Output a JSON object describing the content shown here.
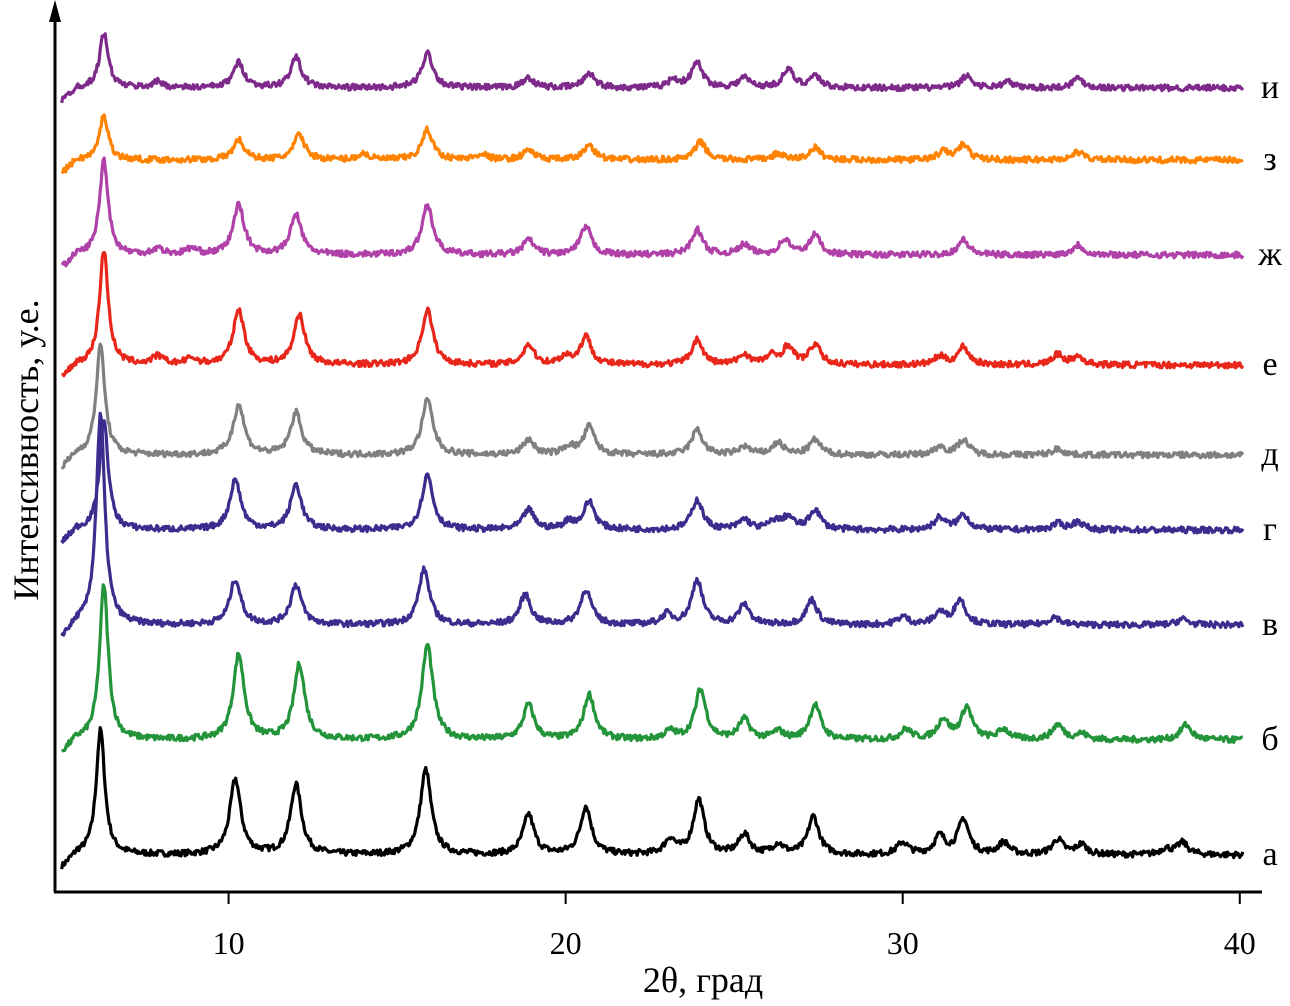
{
  "chart_data": {
    "type": "line",
    "title": "",
    "xlabel": "2θ, град",
    "ylabel": "Интенсивность, у.е.",
    "xlim": [
      4.85,
      40.6
    ],
    "ylim": [
      0,
      890
    ],
    "xticks": [
      10,
      20,
      30,
      40
    ],
    "xtick_labels": [
      "10",
      "20",
      "30",
      "40"
    ],
    "grid": false,
    "legend": "labels at right end of each curve",
    "peak_width": 0.14,
    "series": [
      {
        "name": "а",
        "color": "#000000",
        "offset": 37,
        "peaks": [
          [
            6.2,
            125
          ],
          [
            10.2,
            75
          ],
          [
            12.0,
            70
          ],
          [
            15.85,
            85
          ],
          [
            18.9,
            40
          ],
          [
            20.6,
            48
          ],
          [
            23.1,
            15
          ],
          [
            23.95,
            55
          ],
          [
            25.3,
            20
          ],
          [
            26.3,
            10
          ],
          [
            27.35,
            38
          ],
          [
            30.0,
            12
          ],
          [
            31.1,
            18
          ],
          [
            31.8,
            35
          ],
          [
            33.0,
            12
          ],
          [
            34.6,
            15
          ],
          [
            35.3,
            10
          ],
          [
            37.8,
            6
          ],
          [
            38.3,
            12
          ]
        ]
      },
      {
        "name": "б",
        "color": "#23943a",
        "offset": 152,
        "peaks": [
          [
            6.3,
            155
          ],
          [
            10.3,
            85
          ],
          [
            12.1,
            75
          ],
          [
            15.9,
            95
          ],
          [
            18.9,
            35
          ],
          [
            20.7,
            45
          ],
          [
            23.1,
            8
          ],
          [
            24.0,
            50
          ],
          [
            25.3,
            20
          ],
          [
            26.3,
            8
          ],
          [
            27.4,
            35
          ],
          [
            30.1,
            10
          ],
          [
            31.2,
            20
          ],
          [
            31.9,
            32
          ],
          [
            33.0,
            10
          ],
          [
            34.6,
            15
          ],
          [
            35.3,
            6
          ],
          [
            38.4,
            15
          ]
        ]
      },
      {
        "name": "в",
        "color": "#3b2d8e",
        "offset": 267,
        "peaks": [
          [
            6.2,
            210
          ],
          [
            10.2,
            45
          ],
          [
            12.0,
            40
          ],
          [
            15.8,
            55
          ],
          [
            18.8,
            30
          ],
          [
            20.6,
            35
          ],
          [
            23.0,
            10
          ],
          [
            23.9,
            45
          ],
          [
            25.3,
            20
          ],
          [
            27.3,
            25
          ],
          [
            30.0,
            8
          ],
          [
            31.1,
            12
          ],
          [
            31.7,
            25
          ],
          [
            34.5,
            8
          ],
          [
            38.3,
            6
          ]
        ]
      },
      {
        "name": "г",
        "color": "#3b2d8e",
        "offset": 362,
        "peaks": [
          [
            6.3,
            110
          ],
          [
            10.2,
            50
          ],
          [
            12.0,
            45
          ],
          [
            15.9,
            55
          ],
          [
            18.9,
            20
          ],
          [
            20.1,
            8
          ],
          [
            20.7,
            28
          ],
          [
            23.9,
            30
          ],
          [
            25.3,
            10
          ],
          [
            26.2,
            8
          ],
          [
            26.6,
            12
          ],
          [
            27.4,
            20
          ],
          [
            31.1,
            12
          ],
          [
            31.8,
            15
          ],
          [
            34.6,
            6
          ],
          [
            35.2,
            8
          ]
        ]
      },
      {
        "name": "д",
        "color": "#808080",
        "offset": 437,
        "peaks": [
          [
            6.2,
            110
          ],
          [
            10.3,
            50
          ],
          [
            12.0,
            42
          ],
          [
            15.9,
            55
          ],
          [
            18.9,
            15
          ],
          [
            20.1,
            8
          ],
          [
            20.7,
            28
          ],
          [
            23.9,
            25
          ],
          [
            25.3,
            8
          ],
          [
            26.3,
            12
          ],
          [
            27.4,
            15
          ],
          [
            31.1,
            8
          ],
          [
            31.8,
            15
          ],
          [
            34.6,
            6
          ]
        ]
      },
      {
        "name": "е",
        "color": "#e8261a",
        "offset": 527,
        "peaks": [
          [
            6.3,
            115
          ],
          [
            7.9,
            8
          ],
          [
            8.9,
            6
          ],
          [
            10.3,
            55
          ],
          [
            12.1,
            50
          ],
          [
            15.9,
            55
          ],
          [
            18.9,
            20
          ],
          [
            20.0,
            8
          ],
          [
            20.6,
            28
          ],
          [
            23.9,
            25
          ],
          [
            25.3,
            10
          ],
          [
            26.1,
            8
          ],
          [
            26.6,
            18
          ],
          [
            27.4,
            20
          ],
          [
            31.1,
            8
          ],
          [
            31.8,
            18
          ],
          [
            34.6,
            10
          ],
          [
            35.2,
            8
          ]
        ]
      },
      {
        "name": "ж",
        "color": "#b041a8",
        "offset": 637,
        "peaks": [
          [
            6.3,
            95
          ],
          [
            7.9,
            6
          ],
          [
            8.9,
            6
          ],
          [
            10.3,
            50
          ],
          [
            12.0,
            40
          ],
          [
            15.9,
            50
          ],
          [
            18.9,
            15
          ],
          [
            20.6,
            28
          ],
          [
            23.9,
            25
          ],
          [
            25.3,
            10
          ],
          [
            26.5,
            15
          ],
          [
            27.4,
            20
          ],
          [
            31.8,
            15
          ],
          [
            35.2,
            10
          ]
        ]
      },
      {
        "name": "з",
        "color": "#ff8200",
        "offset": 732,
        "peaks": [
          [
            6.3,
            45
          ],
          [
            10.3,
            20
          ],
          [
            12.1,
            25
          ],
          [
            14.0,
            6
          ],
          [
            15.9,
            30
          ],
          [
            17.5,
            6
          ],
          [
            18.9,
            10
          ],
          [
            20.7,
            15
          ],
          [
            24.0,
            18
          ],
          [
            26.3,
            6
          ],
          [
            27.4,
            12
          ],
          [
            31.2,
            8
          ],
          [
            31.8,
            15
          ],
          [
            35.2,
            8
          ]
        ]
      },
      {
        "name": "и",
        "color": "#7d2a8a",
        "offset": 804,
        "peaks": [
          [
            6.3,
            55
          ],
          [
            7.9,
            6
          ],
          [
            10.3,
            25
          ],
          [
            12.0,
            30
          ],
          [
            15.9,
            35
          ],
          [
            18.9,
            10
          ],
          [
            20.7,
            15
          ],
          [
            23.2,
            8
          ],
          [
            23.9,
            25
          ],
          [
            25.3,
            10
          ],
          [
            26.6,
            18
          ],
          [
            27.4,
            12
          ],
          [
            31.9,
            12
          ],
          [
            33.1,
            6
          ],
          [
            35.2,
            10
          ]
        ]
      }
    ]
  }
}
